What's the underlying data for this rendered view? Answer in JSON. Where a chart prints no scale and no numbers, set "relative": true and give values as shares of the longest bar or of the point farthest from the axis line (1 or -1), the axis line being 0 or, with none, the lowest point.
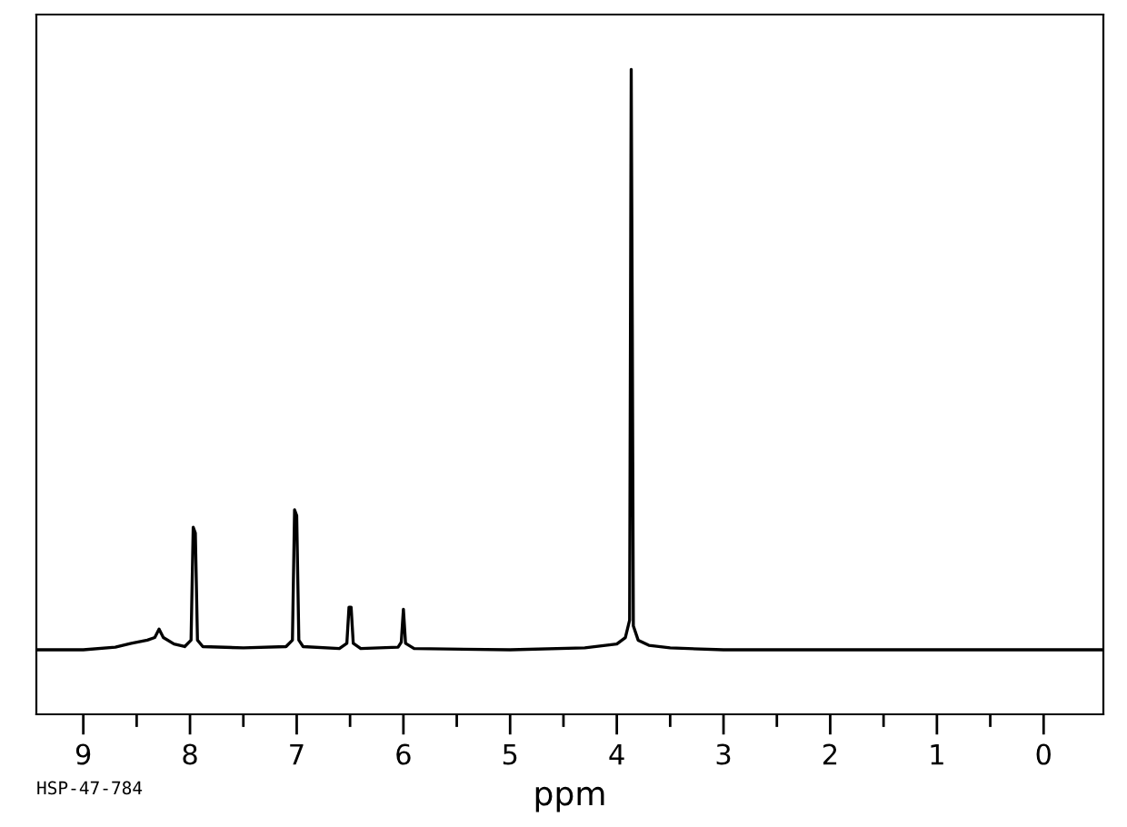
{
  "chart_data": {
    "type": "line",
    "relative": true,
    "xlabel": "ppm",
    "annotations": [
      "HSP-47-784"
    ],
    "xlim": [
      9.44,
      -0.56
    ],
    "xticks": [
      9,
      {
        "value": 8.5,
        "label": null
      },
      8,
      {
        "value": 7.5,
        "label": null
      },
      7,
      {
        "value": 6.5,
        "label": null
      },
      6,
      {
        "value": 5.5,
        "label": null
      },
      5,
      {
        "value": 4.5,
        "label": null
      },
      4,
      {
        "value": 3.5,
        "label": null
      },
      3,
      {
        "value": 2.5,
        "label": null
      },
      2,
      {
        "value": 1.5,
        "label": null
      },
      1,
      {
        "value": 0.5,
        "label": null
      },
      0
    ],
    "tick_labels": "x",
    "grid": false,
    "legend": false,
    "marker": "none",
    "line_style": "solid",
    "series": [
      {
        "color": "#000000",
        "x": [
          9.44,
          9.0,
          8.7,
          8.55,
          8.4,
          8.33,
          8.29,
          8.25,
          8.15,
          8.05,
          7.99,
          7.97,
          7.95,
          7.93,
          7.88,
          7.5,
          7.1,
          7.04,
          7.02,
          7.0,
          6.98,
          6.94,
          6.6,
          6.53,
          6.51,
          6.49,
          6.47,
          6.4,
          6.05,
          6.02,
          6.0,
          5.98,
          5.9,
          5.0,
          4.3,
          4.0,
          3.92,
          3.88,
          3.865,
          3.855,
          3.845,
          3.8,
          3.7,
          3.5,
          3.0,
          2.0,
          1.0,
          0.0,
          -0.56
        ],
        "values": [
          0.1,
          0.1,
          0.104,
          0.11,
          0.115,
          0.119,
          0.132,
          0.119,
          0.109,
          0.105,
          0.115,
          0.29,
          0.281,
          0.115,
          0.105,
          0.103,
          0.105,
          0.115,
          0.317,
          0.308,
          0.115,
          0.105,
          0.102,
          0.11,
          0.166,
          0.166,
          0.11,
          0.102,
          0.104,
          0.112,
          0.163,
          0.11,
          0.102,
          0.1,
          0.103,
          0.109,
          0.119,
          0.146,
          1.0,
          0.605,
          0.137,
          0.115,
          0.107,
          0.103,
          0.1,
          0.1,
          0.1,
          0.1,
          0.1
        ]
      }
    ]
  }
}
